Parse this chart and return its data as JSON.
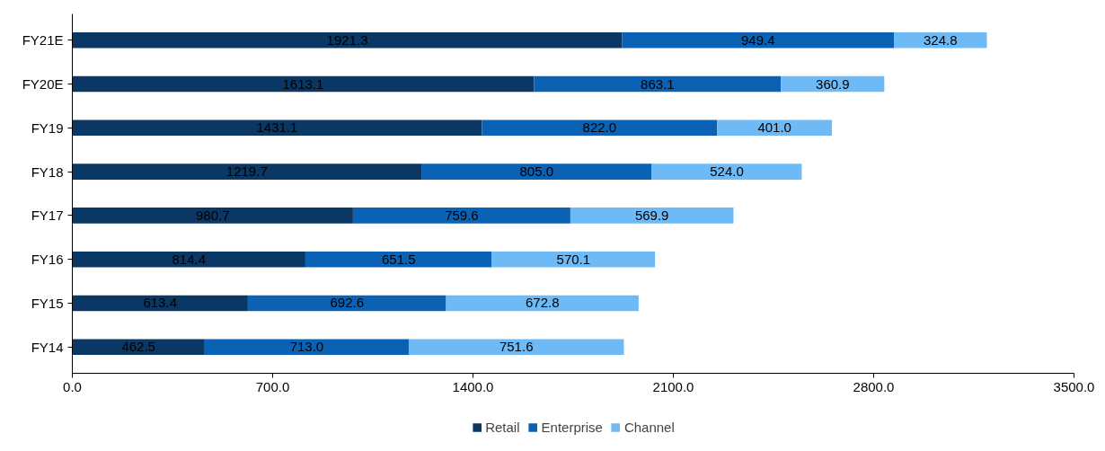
{
  "chart_data": {
    "type": "bar",
    "orientation": "horizontal",
    "stacked": true,
    "categories": [
      "FY21E",
      "FY20E",
      "FY19",
      "FY18",
      "FY17",
      "FY16",
      "FY15",
      "FY14"
    ],
    "series": [
      {
        "name": "Retail",
        "color": "#0a3764",
        "values": [
          1921.3,
          1613.1,
          1431.1,
          1219.7,
          980.7,
          814.4,
          613.4,
          462.5
        ],
        "value_labels": [
          "1921.3",
          "1613.1",
          "1431.1",
          "1219.7",
          "980.7",
          "814.4",
          "613.4",
          "462.5"
        ]
      },
      {
        "name": "Enterprise",
        "color": "#0b62b4",
        "values": [
          949.4,
          863.1,
          822.0,
          805.0,
          759.6,
          651.5,
          692.6,
          713.0
        ],
        "value_labels": [
          "949.4",
          "863.1",
          "822.0",
          "805.0",
          "759.6",
          "651.5",
          "692.6",
          "713.0"
        ]
      },
      {
        "name": "Channel",
        "color": "#6dbaf6",
        "values": [
          324.8,
          360.9,
          401.0,
          524.0,
          569.9,
          570.1,
          672.8,
          751.6
        ],
        "value_labels": [
          "324.8",
          "360.9",
          "401.0",
          "524.0",
          "569.9",
          "570.1",
          "672.8",
          "751.6"
        ]
      }
    ],
    "xlim": [
      0,
      3500
    ],
    "xticks": [
      {
        "value": 0,
        "label": "0.0"
      },
      {
        "value": 700,
        "label": "700.0"
      },
      {
        "value": 1400,
        "label": "1400.0"
      },
      {
        "value": 2100,
        "label": "2100.0"
      },
      {
        "value": 2800,
        "label": "2800.0"
      },
      {
        "value": 3500,
        "label": "3500.0"
      }
    ],
    "grid": false,
    "legend": "bottom"
  }
}
